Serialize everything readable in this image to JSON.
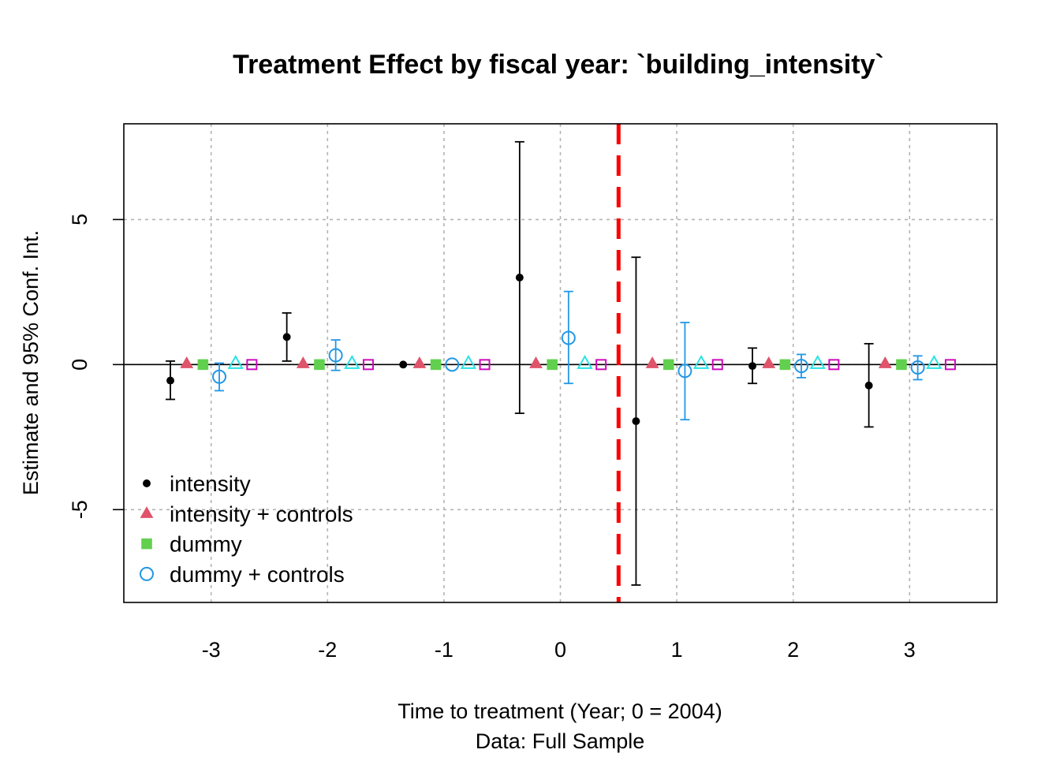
{
  "chart_data": {
    "type": "scatter",
    "title": "Treatment Effect by fiscal year: `building_intensity`",
    "xlabel": "Time to treatment (Year; 0 = 2004)",
    "xlabel2": "Data: Full Sample",
    "ylabel": "Estimate and 95% Conf. Int.",
    "xlim": [
      -3.75,
      3.75
    ],
    "ylim": [
      -8.2,
      8.3
    ],
    "x_ticks": [
      -3,
      -2,
      -1,
      0,
      1,
      2,
      3
    ],
    "y_ticks": [
      -5,
      0,
      5
    ],
    "grid": true,
    "reference_hline": 0,
    "treatment_vline": 0.5,
    "legend_position": "bottom-left",
    "x": [
      -3,
      -2,
      -1,
      0,
      1,
      2,
      3
    ],
    "series": [
      {
        "name": "intensity",
        "color": "#000000",
        "marker": "filled-circle",
        "offset": -0.35,
        "values": [
          -0.55,
          0.95,
          0.0,
          3.0,
          -1.95,
          -0.05,
          -0.72
        ],
        "ci_low": [
          -1.2,
          0.12,
          0.0,
          -1.68,
          -7.6,
          -0.65,
          -2.15
        ],
        "ci_high": [
          0.12,
          1.78,
          0.0,
          7.68,
          3.7,
          0.57,
          0.72
        ]
      },
      {
        "name": "intensity + controls",
        "color": "#df536b",
        "marker": "filled-triangle",
        "offset": -0.21,
        "values": [
          0.03,
          0.03,
          0.03,
          0.03,
          0.03,
          0.03,
          0.03
        ]
      },
      {
        "name": "dummy",
        "color": "#61d04f",
        "marker": "filled-square",
        "offset": -0.07,
        "values": [
          0.0,
          0.0,
          0.0,
          0.0,
          0.0,
          0.0,
          0.0
        ]
      },
      {
        "name": "dummy + controls",
        "color": "#2297e6",
        "marker": "open-circle",
        "offset": 0.07,
        "values": [
          -0.42,
          0.32,
          0.0,
          0.92,
          -0.22,
          -0.05,
          -0.1
        ],
        "ci_low": [
          -0.9,
          -0.2,
          0.0,
          -0.65,
          -1.9,
          -0.45,
          -0.52
        ],
        "ci_high": [
          0.05,
          0.85,
          0.0,
          2.52,
          1.45,
          0.35,
          0.3
        ]
      },
      {
        "marker": "open-triangle",
        "color": "#28e2e5",
        "offset": 0.21,
        "values": [
          0.03,
          0.03,
          0.03,
          0.03,
          0.03,
          0.03,
          0.03
        ]
      },
      {
        "marker": "open-square",
        "color": "#cd0bbc",
        "offset": 0.35,
        "values": [
          0.0,
          0.0,
          0.0,
          0.0,
          0.0,
          0.0,
          0.0
        ]
      }
    ],
    "colors": {
      "vline": "#ff0000",
      "grid": "#b3b3b3"
    }
  }
}
